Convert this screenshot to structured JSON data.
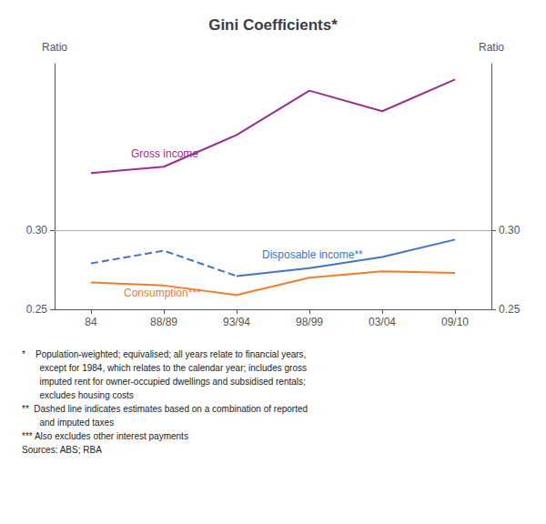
{
  "chart_data": {
    "type": "line",
    "title": "Gini Coefficients*",
    "categories": [
      "84",
      "88/89",
      "93/94",
      "98/99",
      "03/04",
      "09/10"
    ],
    "ylabel": "Ratio",
    "y2label": "Ratio",
    "ylim": [
      0.25,
      0.405
    ],
    "yticks": [
      {
        "value": 0.25,
        "label": "0.25"
      },
      {
        "value": 0.3,
        "label": "0.30"
      }
    ],
    "y2lim": [
      0.25,
      0.405
    ],
    "y2ticks": [
      {
        "value": 0.25,
        "label": "0.25"
      },
      {
        "value": 0.3,
        "label": "0.30"
      }
    ],
    "grid": false,
    "series": [
      {
        "color": "#9B2D8E",
        "line_style": "solid",
        "values": [
          0.336,
          0.34,
          0.36,
          0.388,
          0.375,
          0.395
        ]
      },
      {
        "color": "#4472C4",
        "line_style": "dashed",
        "values": [
          0.279,
          0.287,
          0.271,
          null,
          null,
          null
        ]
      },
      {
        "color": "#4472C4",
        "line_style": "solid",
        "values": [
          null,
          null,
          0.271,
          0.276,
          0.283,
          0.294
        ]
      },
      {
        "color": "#ED7D31",
        "line_style": "solid",
        "values": [
          0.267,
          0.265,
          0.259,
          0.27,
          0.274,
          0.273
        ]
      }
    ],
    "reference_lines": [
      {
        "y": 0.3,
        "color": "#AAAAAA"
      }
    ],
    "annotations": [
      {
        "text": "Gross income",
        "x": 0.55,
        "y": 0.345,
        "color": "#9B2D8E"
      },
      {
        "text": "Disposable income**",
        "x": 2.35,
        "y": 0.281,
        "color": "#4472C4"
      },
      {
        "text": "Consumption***",
        "x": 0.45,
        "y": 0.257,
        "color": "#ED7D31"
      }
    ],
    "footnote": "*    Population-weighted; equivalised; all years relate to financial years,\n       except for 1984, which relates to the calendar year; includes gross\n       imputed rent for owner-occupied dwellings and subsidised rentals;\n       excludes housing costs\n**  Dashed line indicates estimates based on a combination of reported\n       and imputed taxes\n*** Also excludes other interest payments\nSources: ABS; RBA"
  }
}
